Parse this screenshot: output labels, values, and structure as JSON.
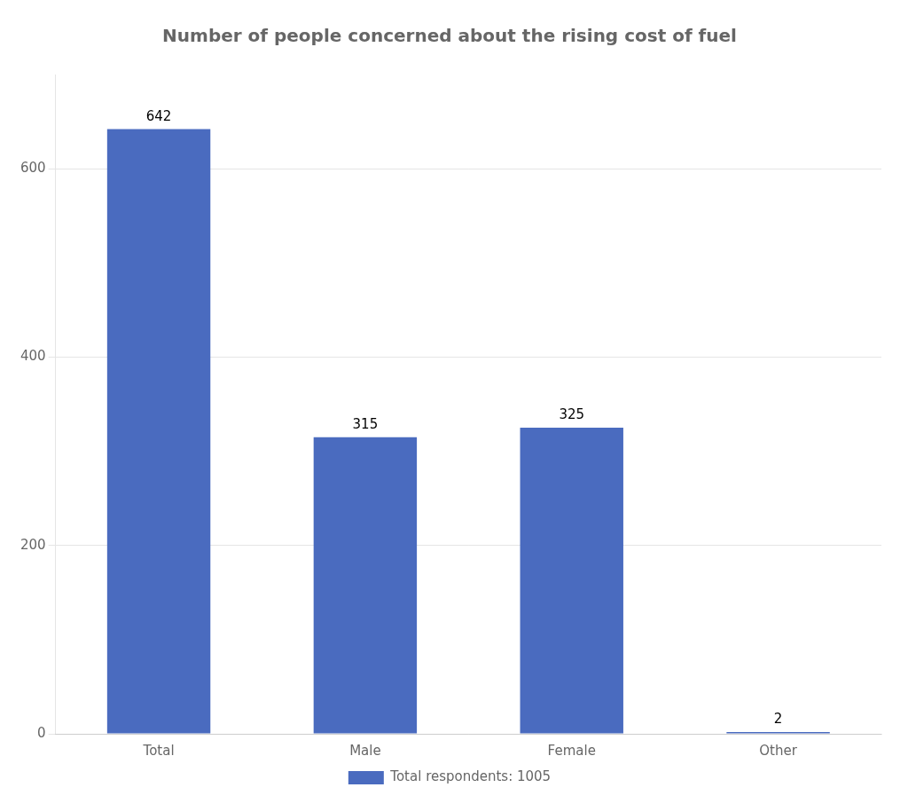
{
  "chart_data": {
    "type": "bar",
    "title": "Number of people concerned about the rising cost of fuel",
    "categories": [
      "Total",
      "Male",
      "Female",
      "Other"
    ],
    "series": [
      {
        "name": "Total respondents: 1005",
        "color": "#4a6bbf",
        "values": [
          642,
          315,
          325,
          2
        ]
      }
    ],
    "ylim": [
      0,
      700
    ],
    "yticks": [
      0,
      200,
      400,
      600
    ],
    "grid": true,
    "legend": "bottom",
    "data_labels": true
  }
}
